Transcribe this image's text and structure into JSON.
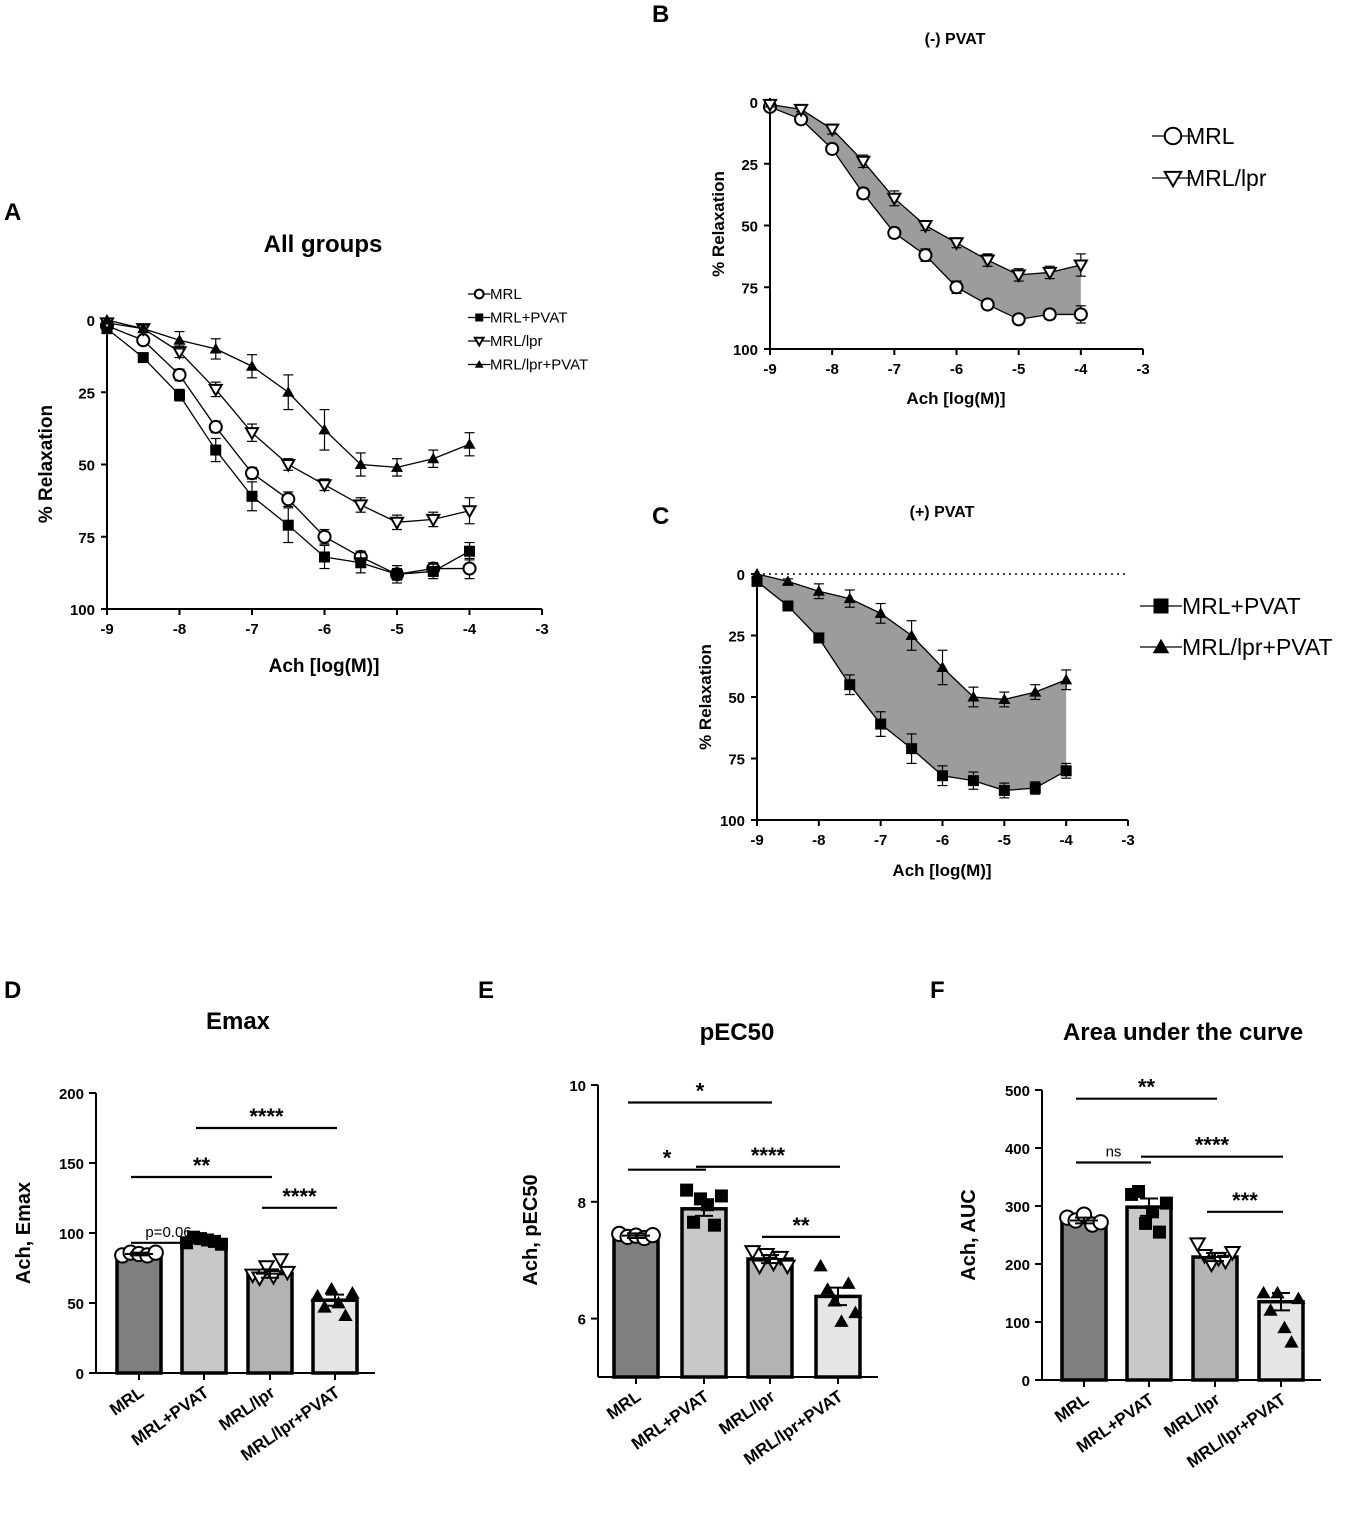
{
  "chart_data": [
    {
      "id": "A",
      "type": "line",
      "panel_label": "A",
      "title": "All groups",
      "xlabel": "Ach [log(M)]",
      "ylabel": "% Relaxation",
      "xlim": [
        -9,
        -3
      ],
      "ylim": [
        0,
        100
      ],
      "y_inverted": true,
      "xticks": [
        "-9",
        "-8",
        "-7",
        "-6",
        "-5",
        "-4",
        "-3"
      ],
      "yticks": [
        "0",
        "25",
        "50",
        "75",
        "100"
      ],
      "x": [
        -9,
        -8.5,
        -8,
        -7.5,
        -7,
        -6.5,
        -6,
        -5.5,
        -5,
        -4.5,
        -4
      ],
      "legend_position": "top-right",
      "series": [
        {
          "name": "MRL",
          "marker": "circle-open",
          "values": [
            2,
            7,
            19,
            37,
            53,
            62,
            75,
            82,
            88,
            86,
            86
          ],
          "errors": [
            1,
            1.5,
            2,
            2,
            2,
            2.5,
            2.5,
            2,
            2,
            2,
            3.5
          ]
        },
        {
          "name": "MRL+PVAT",
          "marker": "square",
          "values": [
            3,
            13,
            26,
            45,
            61,
            71,
            82,
            84,
            88,
            87,
            80
          ],
          "errors": [
            1,
            1.5,
            2,
            4,
            5,
            6,
            4,
            3.5,
            3,
            2.5,
            3
          ]
        },
        {
          "name": "MRL/lpr",
          "marker": "triangle-down-open",
          "values": [
            1,
            3,
            11,
            24,
            39,
            50,
            57,
            64,
            70,
            69,
            66
          ],
          "errors": [
            1,
            1,
            2,
            2.5,
            3,
            2,
            2,
            2.5,
            2.5,
            2.5,
            4.5
          ]
        },
        {
          "name": "MRL/lpr+PVAT",
          "marker": "triangle-up",
          "values": [
            0,
            3,
            7,
            10,
            16,
            25,
            38,
            50,
            51,
            48,
            43
          ],
          "errors": [
            0.5,
            1,
            3,
            3.5,
            4,
            6,
            7,
            4,
            3,
            3,
            4
          ]
        }
      ]
    },
    {
      "id": "B",
      "type": "line",
      "panel_label": "B",
      "title": "(-) PVAT",
      "xlabel": "Ach [log(M)]",
      "ylabel": "% Relaxation",
      "xlim": [
        -9,
        -3
      ],
      "ylim": [
        0,
        100
      ],
      "y_inverted": true,
      "xticks": [
        "-9",
        "-8",
        "-7",
        "-6",
        "-5",
        "-4",
        "-3"
      ],
      "yticks": [
        "0",
        "25",
        "50",
        "75",
        "100"
      ],
      "x": [
        -9,
        -8.5,
        -8,
        -7.5,
        -7,
        -6.5,
        -6,
        -5.5,
        -5,
        -4.5,
        -4
      ],
      "shaded_between": [
        "MRL",
        "MRL/lpr"
      ],
      "legend_position": "right",
      "series": [
        {
          "name": "MRL",
          "marker": "circle-open",
          "values": [
            2,
            7,
            19,
            37,
            53,
            62,
            75,
            82,
            88,
            86,
            86
          ],
          "errors": [
            1,
            1.5,
            2,
            2,
            2,
            2.5,
            2.5,
            2,
            2,
            2,
            3.5
          ]
        },
        {
          "name": "MRL/lpr",
          "marker": "triangle-down-open",
          "values": [
            1,
            3,
            11,
            24,
            39,
            50,
            57,
            64,
            70,
            69,
            66
          ],
          "errors": [
            1,
            1,
            2,
            2.5,
            3,
            2,
            2,
            2.5,
            2.5,
            2.5,
            4.5
          ]
        }
      ]
    },
    {
      "id": "C",
      "type": "line",
      "panel_label": "C",
      "title": "(+) PVAT",
      "xlabel": "Ach [log(M)]",
      "ylabel": "% Relaxation",
      "xlim": [
        -9,
        -3
      ],
      "ylim": [
        0,
        100
      ],
      "y_inverted": true,
      "xticks": [
        "-9",
        "-8",
        "-7",
        "-6",
        "-5",
        "-4",
        "-3"
      ],
      "yticks": [
        "0",
        "25",
        "50",
        "75",
        "100"
      ],
      "x": [
        -9,
        -8.5,
        -8,
        -7.5,
        -7,
        -6.5,
        -6,
        -5.5,
        -5,
        -4.5,
        -4
      ],
      "shaded_between": [
        "MRL+PVAT",
        "MRL/lpr+PVAT"
      ],
      "dotted_zero_line": true,
      "legend_position": "right",
      "series": [
        {
          "name": "MRL+PVAT",
          "marker": "square",
          "values": [
            3,
            13,
            26,
            45,
            61,
            71,
            82,
            84,
            88,
            87,
            80
          ],
          "errors": [
            1,
            1.5,
            2,
            4,
            5,
            6,
            4,
            3.5,
            3,
            2.5,
            3
          ]
        },
        {
          "name": "MRL/lpr+PVAT",
          "marker": "triangle-up",
          "values": [
            0,
            3,
            7,
            10,
            16,
            25,
            38,
            50,
            51,
            48,
            43
          ],
          "errors": [
            0.5,
            1,
            3,
            3.5,
            4,
            6,
            7,
            4,
            3,
            3,
            4
          ]
        }
      ]
    },
    {
      "id": "D",
      "type": "bar",
      "panel_label": "D",
      "title": "Emax",
      "ylabel": "Ach, Emax",
      "ylim": [
        0,
        200
      ],
      "yticks": [
        "0",
        "50",
        "100",
        "150",
        "200"
      ],
      "categories": [
        "MRL",
        "MRL+PVAT",
        "MRL/lpr",
        "MRL/lpr+PVAT"
      ],
      "values": [
        85,
        95,
        71,
        52
      ],
      "errors": [
        1,
        1,
        3,
        4
      ],
      "points": [
        [
          84,
          86,
          85,
          84,
          86
        ],
        [
          93,
          97,
          96,
          95,
          94,
          92
        ],
        [
          70,
          68,
          76,
          69,
          81,
          72
        ],
        [
          55,
          47,
          60,
          50,
          41,
          57
        ]
      ],
      "comparisons": [
        {
          "from": 0,
          "to": 1,
          "label": "p=0.06",
          "level": 93
        },
        {
          "from": 0,
          "to": 2,
          "label": "**",
          "level": 140
        },
        {
          "from": 1,
          "to": 3,
          "label": "****",
          "level": 175
        },
        {
          "from": 2,
          "to": 3,
          "label": "****",
          "level": 118
        }
      ]
    },
    {
      "id": "E",
      "type": "bar",
      "panel_label": "E",
      "title": "pEC50",
      "ylabel": "Ach, pEC50",
      "ylim": [
        5,
        10
      ],
      "yticks": [
        "6",
        "8",
        "10"
      ],
      "categories": [
        "MRL",
        "MRL+PVAT",
        "MRL/lpr",
        "MRL/lpr+PVAT"
      ],
      "values": [
        7.42,
        7.88,
        7.02,
        6.38
      ],
      "errors": [
        0.04,
        0.12,
        0.07,
        0.15
      ],
      "points": [
        [
          7.45,
          7.4,
          7.42,
          7.38,
          7.43
        ],
        [
          8.2,
          7.65,
          8.05,
          7.95,
          7.6,
          8.1
        ],
        [
          7.15,
          6.9,
          7.1,
          6.95,
          7.05,
          6.9
        ],
        [
          6.9,
          6.5,
          6.3,
          5.95,
          6.6,
          6.1
        ]
      ],
      "comparisons": [
        {
          "from": 0,
          "to": 2,
          "label": "*",
          "level": 9.7
        },
        {
          "from": 0,
          "to": 1,
          "label": "*",
          "level": 8.55
        },
        {
          "from": 1,
          "to": 3,
          "label": "****",
          "level": 8.6
        },
        {
          "from": 2,
          "to": 3,
          "label": "**",
          "level": 7.4
        }
      ]
    },
    {
      "id": "F",
      "type": "bar",
      "panel_label": "F",
      "title": "Area under the curve",
      "ylabel": "Ach, AUC",
      "ylim": [
        0,
        500
      ],
      "yticks": [
        "0",
        "100",
        "200",
        "300",
        "400",
        "500"
      ],
      "categories": [
        "MRL",
        "MRL+PVAT",
        "MRL/lpr",
        "MRL/lpr+PVAT"
      ],
      "values": [
        275,
        298,
        212,
        135
      ],
      "errors": [
        5,
        15,
        7,
        15
      ],
      "points": [
        [
          280,
          275,
          285,
          268,
          272
        ],
        [
          320,
          325,
          270,
          290,
          255,
          305
        ],
        [
          235,
          215,
          200,
          210,
          205,
          220
        ],
        [
          150,
          120,
          150,
          90,
          65,
          140
        ]
      ],
      "comparisons": [
        {
          "from": 0,
          "to": 2,
          "label": "**",
          "level": 485
        },
        {
          "from": 0,
          "to": 1,
          "label": "ns",
          "level": 375
        },
        {
          "from": 1,
          "to": 3,
          "label": "****",
          "level": 385
        },
        {
          "from": 2,
          "to": 3,
          "label": "***",
          "level": 290
        }
      ]
    }
  ],
  "colors": {
    "bars": [
      "#7f7f7f",
      "#c8c8c8",
      "#b3b3b3",
      "#e6e6e6"
    ],
    "shade": "#9c9c9c",
    "ink": "#000000"
  }
}
